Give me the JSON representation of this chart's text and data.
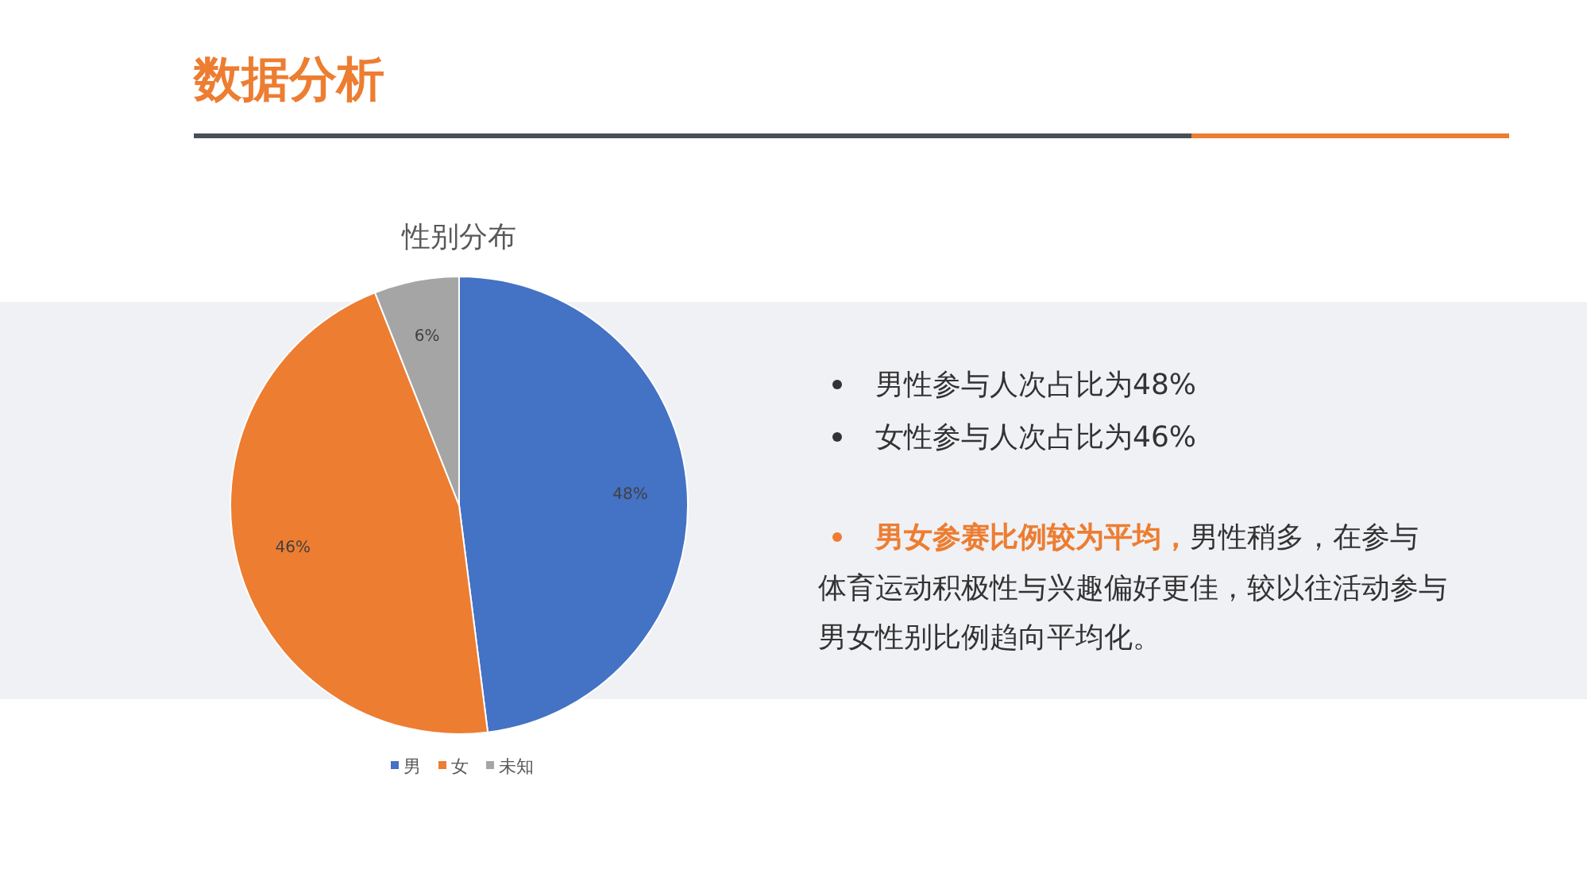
{
  "chart_data": {
    "type": "pie",
    "title": "数据分析",
    "subtitle": "性别分布",
    "categories": [
      "男",
      "女",
      "未知"
    ],
    "values": [
      48,
      46,
      6
    ],
    "colors": [
      "#4472c4",
      "#ed7d31",
      "#a5a5a5"
    ],
    "value_labels": [
      "48%",
      "46%",
      "6%"
    ],
    "legend": "bottom",
    "annotations": [
      "男性参与人次占比为48%",
      "女性参与人次占比为46%",
      "男女参赛比例较为平均，",
      "男性稍多，在参与体育运动积极性与兴趣偏好更佳，较以往活动参与男女性别比例趋向平均化。"
    ]
  }
}
